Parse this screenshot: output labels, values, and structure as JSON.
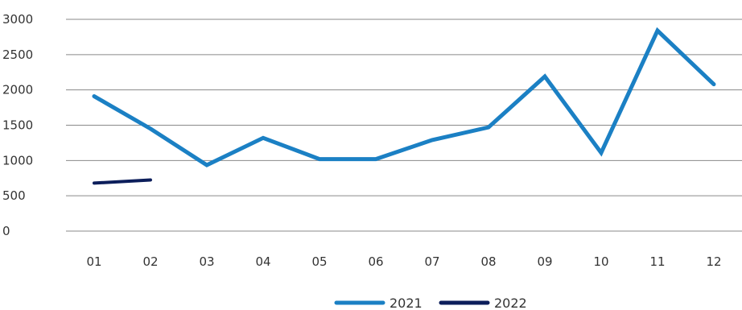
{
  "chart_data": {
    "type": "line",
    "title": "",
    "xlabel": "",
    "ylabel": "",
    "categories": [
      "01",
      "02",
      "03",
      "04",
      "05",
      "06",
      "07",
      "08",
      "09",
      "10",
      "11",
      "12"
    ],
    "ylim": [
      0,
      3000
    ],
    "yticks": [
      0,
      500,
      1000,
      1500,
      2000,
      2500,
      3000
    ],
    "grid": true,
    "legend_position": "bottom",
    "series": [
      {
        "name": "2021",
        "color": "#1b80c4",
        "values": [
          1910,
          1450,
          935,
          1320,
          1020,
          1020,
          1290,
          1470,
          2190,
          1110,
          2840,
          2080
        ]
      },
      {
        "name": "2022",
        "color": "#0c1e5b",
        "values": [
          680,
          725,
          null,
          null,
          null,
          null,
          null,
          null,
          null,
          null,
          null,
          null
        ]
      }
    ]
  }
}
